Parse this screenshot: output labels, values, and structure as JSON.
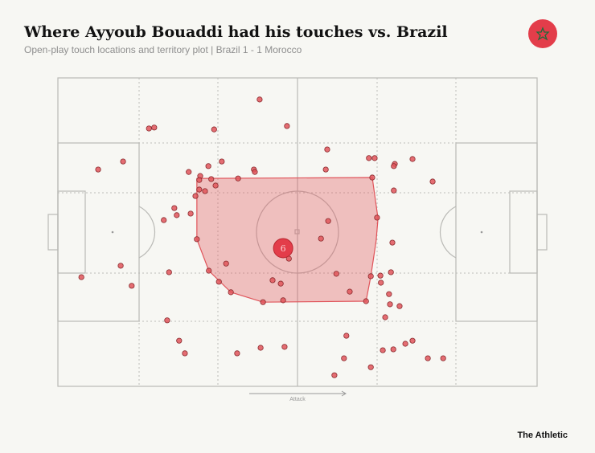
{
  "chart_data": {
    "type": "scatter",
    "title": "Where Ayyoub Bouaddi had his touches vs. Brazil",
    "subtitle": "Open-play touch locations and territory plot |  Brazil 1 - 1 Morocco",
    "direction_label": "Attack",
    "source": "The Athletic",
    "color": "#e0555b",
    "xlim": [
      0,
      100
    ],
    "ylim": [
      0,
      100
    ],
    "x": [
      42.1,
      19.0,
      20.1,
      32.6,
      47.8,
      56.2,
      64.9,
      66.1,
      70.3,
      74.0,
      70.1,
      8.4,
      13.6,
      27.3,
      29.7,
      31.4,
      34.2,
      40.9,
      41.1,
      37.6,
      55.9,
      32.0,
      29.5,
      28.7,
      32.9,
      30.7,
      70.1,
      78.2,
      24.3,
      27.7,
      22.1,
      24.8,
      66.6,
      56.4,
      54.9,
      69.8,
      13.1,
      4.9,
      15.4,
      23.2,
      35.1,
      33.6,
      44.8,
      46.5,
      42.8,
      47.0,
      58.1,
      60.9,
      67.3,
      69.5,
      67.4,
      69.1,
      69.3,
      71.3,
      68.3,
      22.8,
      25.3,
      26.5,
      37.4,
      42.3,
      47.3,
      60.2,
      72.5,
      74.0,
      67.8,
      70.0,
      59.7,
      65.3,
      57.7,
      77.2,
      80.4,
      48.2,
      29.5,
      29.0,
      31.5,
      36.1,
      64.3,
      65.3,
      65.6
    ],
    "values": [
      7.0,
      16.4,
      16.1,
      16.7,
      15.6,
      23.2,
      26.0,
      26.0,
      27.9,
      26.3,
      28.6,
      29.7,
      27.1,
      30.5,
      31.8,
      28.6,
      27.1,
      29.7,
      30.5,
      32.6,
      29.7,
      32.8,
      36.2,
      38.3,
      34.9,
      36.7,
      36.5,
      33.6,
      42.2,
      44.0,
      46.1,
      44.5,
      45.3,
      46.4,
      52.1,
      53.4,
      60.9,
      64.6,
      67.4,
      63.0,
      60.2,
      66.1,
      65.6,
      66.7,
      72.7,
      72.1,
      63.5,
      69.3,
      64.1,
      63.0,
      66.4,
      70.1,
      73.4,
      74.0,
      77.6,
      78.6,
      85.2,
      89.3,
      89.3,
      87.5,
      87.2,
      83.6,
      86.2,
      85.2,
      88.3,
      88.0,
      90.9,
      93.8,
      96.4,
      90.9,
      90.9,
      58.6,
      33.1,
      52.3,
      62.5,
      69.5,
      72.4,
      64.3,
      32.3
    ],
    "territory": {
      "x": [
        29.0,
        65.6,
        66.8,
        66.4,
        65.3,
        64.3,
        42.8,
        36.1,
        31.5,
        29.0,
        29.0
      ],
      "y": [
        32.6,
        32.3,
        45.6,
        52.9,
        64.3,
        72.4,
        72.7,
        69.5,
        62.5,
        52.3,
        35.4
      ]
    },
    "average": {
      "x": 47.0,
      "y": 55.2,
      "label": "6"
    }
  }
}
